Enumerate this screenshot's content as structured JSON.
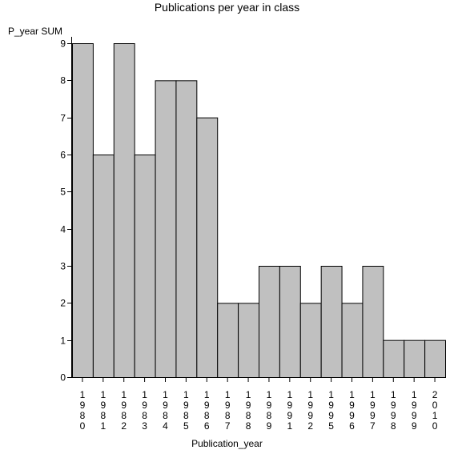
{
  "chart_data": {
    "type": "bar",
    "title": "Publications per year in class",
    "ylabel": "P_year SUM",
    "xlabel": "Publication_year",
    "categories": [
      "1980",
      "1981",
      "1982",
      "1983",
      "1984",
      "1985",
      "1986",
      "1987",
      "1988",
      "1989",
      "1991",
      "1992",
      "1995",
      "1996",
      "1997",
      "1998",
      "1999",
      "2010"
    ],
    "values": [
      9,
      6,
      9,
      6,
      8,
      8,
      7,
      2,
      2,
      3,
      3,
      2,
      3,
      2,
      3,
      1,
      1,
      1
    ],
    "ylim": [
      0,
      9
    ],
    "yticks": [
      0,
      1,
      2,
      3,
      4,
      5,
      6,
      7,
      8,
      9
    ],
    "bar_color": "#c0c0c0",
    "grid": false,
    "legend": "none"
  }
}
